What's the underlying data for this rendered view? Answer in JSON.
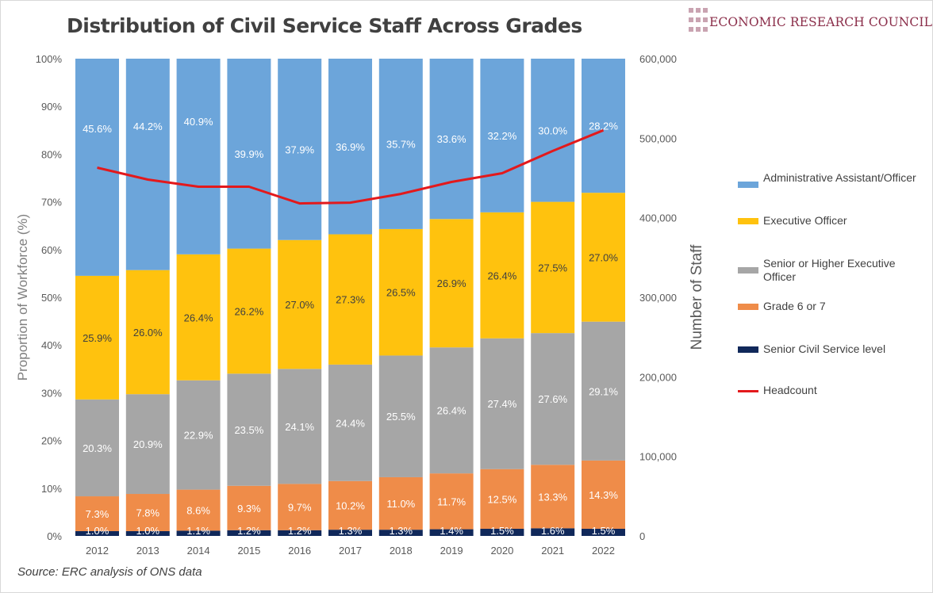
{
  "title": "Distribution of Civil Service Staff Across Grades",
  "brand": {
    "name": "ECONOMIC RESEARCH COUNCIL",
    "color": "#8b2e4a"
  },
  "source": "Source: ERC analysis of ONS data",
  "chart_data": {
    "type": "bar",
    "stacked": true,
    "categories": [
      "2012",
      "2013",
      "2014",
      "2015",
      "2016",
      "2017",
      "2018",
      "2019",
      "2020",
      "2021",
      "2022"
    ],
    "ylabel": "Proportion of Workforce (%)",
    "y2label": "Number of Staff",
    "yticks": [
      "0%",
      "10%",
      "20%",
      "30%",
      "40%",
      "50%",
      "60%",
      "70%",
      "80%",
      "90%",
      "100%"
    ],
    "y2ticks": [
      "0",
      "100,000",
      "200,000",
      "300,000",
      "400,000",
      "500,000",
      "600,000"
    ],
    "ylim": [
      0,
      100
    ],
    "y2lim": [
      0,
      600000
    ],
    "grid": false,
    "legend_position": "right",
    "series": [
      {
        "name": "Senior Civil Service level",
        "color": "#10285a",
        "label_color": "#ffffff",
        "values": [
          1.0,
          1.0,
          1.1,
          1.2,
          1.2,
          1.3,
          1.3,
          1.4,
          1.5,
          1.6,
          1.5
        ],
        "labels": [
          "1.0%",
          "1.0%",
          "1.1%",
          "1.2%",
          "1.2%",
          "1.3%",
          "1.3%",
          "1.4%",
          "1.5%",
          "1.6%",
          "1.5%"
        ]
      },
      {
        "name": "Grade 6 or 7",
        "color": "#ef8c49",
        "label_color": "#ffffff",
        "values": [
          7.3,
          7.8,
          8.6,
          9.3,
          9.7,
          10.2,
          11.0,
          11.7,
          12.5,
          13.3,
          14.3
        ],
        "labels": [
          "7.3%",
          "7.8%",
          "8.6%",
          "9.3%",
          "9.7%",
          "10.2%",
          "11.0%",
          "11.7%",
          "12.5%",
          "13.3%",
          "14.3%"
        ]
      },
      {
        "name": "Senior or Higher Executive Officer",
        "color": "#a6a6a6",
        "label_color": "#ffffff",
        "values": [
          20.3,
          20.9,
          22.9,
          23.5,
          24.1,
          24.4,
          25.5,
          26.4,
          27.4,
          27.6,
          29.1
        ],
        "labels": [
          "20.3%",
          "20.9%",
          "22.9%",
          "23.5%",
          "24.1%",
          "24.4%",
          "25.5%",
          "26.4%",
          "27.4%",
          "27.6%",
          "29.1%"
        ]
      },
      {
        "name": "Executive Officer",
        "color": "#ffc20e",
        "label_color": "#404040",
        "values": [
          25.9,
          26.0,
          26.4,
          26.2,
          27.0,
          27.3,
          26.5,
          26.9,
          26.4,
          27.5,
          27.0
        ],
        "labels": [
          "25.9%",
          "26.0%",
          "26.4%",
          "26.2%",
          "27.0%",
          "27.3%",
          "26.5%",
          "26.9%",
          "26.4%",
          "27.5%",
          "27.0%"
        ]
      },
      {
        "name": "Administrative Assistant/Officer",
        "color": "#6ca5da",
        "label_color": "#ffffff",
        "values": [
          45.6,
          44.2,
          40.9,
          39.9,
          37.9,
          36.9,
          35.7,
          33.6,
          32.2,
          30.0,
          28.2
        ],
        "labels": [
          "45.6%",
          "44.2%",
          "40.9%",
          "39.9%",
          "37.9%",
          "36.9%",
          "35.7%",
          "33.6%",
          "32.2%",
          "30.0%",
          "28.2%"
        ]
      }
    ],
    "line_series": {
      "name": "Headcount",
      "color": "#e3191c",
      "axis": "y2",
      "values": [
        463000,
        448000,
        439000,
        439000,
        418000,
        419000,
        430000,
        445000,
        456000,
        484000,
        510000
      ]
    },
    "legend_order": [
      "Administrative Assistant/Officer",
      "Executive Officer",
      "Senior or Higher Executive Officer",
      "Grade 6 or 7",
      "Senior Civil Service level",
      "Headcount"
    ]
  }
}
